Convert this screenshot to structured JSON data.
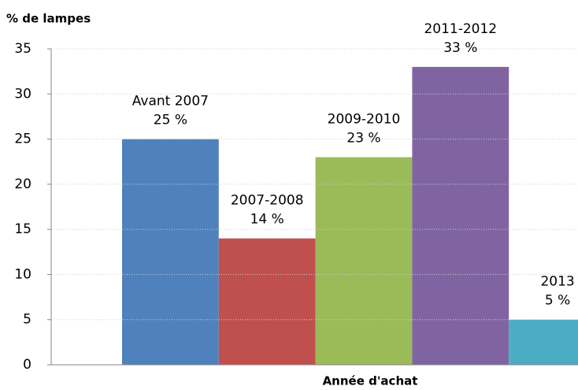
{
  "chart_data": {
    "type": "bar",
    "y_axis_title": "% de lampes",
    "x_axis_title": "Année d'achat",
    "categories": [
      "Avant 2007",
      "2007-2008",
      "2009-2010",
      "2011-2012",
      "2013"
    ],
    "values": [
      25,
      14,
      23,
      33,
      5
    ],
    "value_labels": [
      "25 %",
      "14 %",
      "23 %",
      "33 %",
      "5 %"
    ],
    "colors": [
      "#4f81bd",
      "#c0504d",
      "#9bbb59",
      "#8064a2",
      "#4bacc6"
    ],
    "ylim": [
      0,
      35
    ],
    "yticks": [
      0,
      5,
      10,
      15,
      20,
      25,
      30,
      35
    ],
    "grid": true
  }
}
